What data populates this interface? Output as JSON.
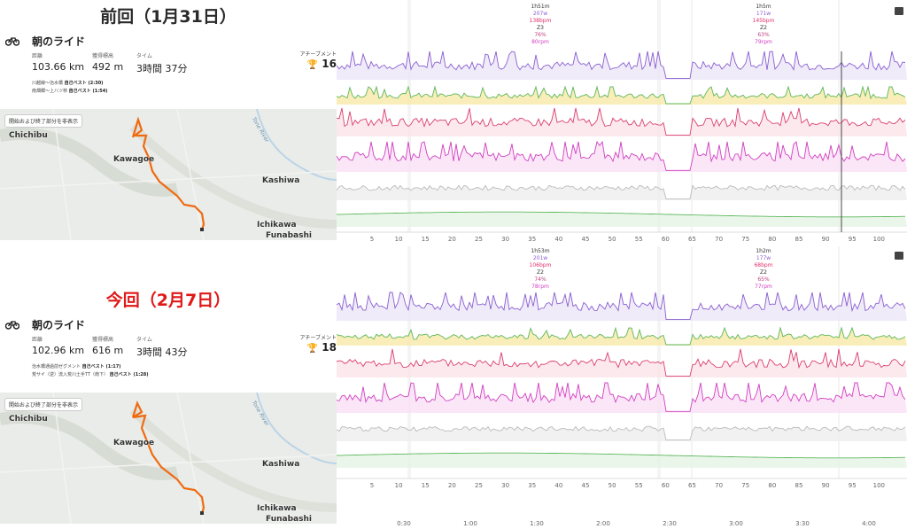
{
  "top": {
    "heading": "前回（1月31日）",
    "activity_title": "朝のライド",
    "stats": [
      {
        "label": "距離",
        "value": "103.66 km"
      },
      {
        "label": "獲得標高",
        "value": "492 m"
      },
      {
        "label": "タイム",
        "value": "3時間 37分"
      }
    ],
    "achievements_label": "アチーブメント",
    "achievements_value": "16",
    "segments": [
      {
        "name": "川越線〜治水橋",
        "pr": "自己ベスト (2:30)"
      },
      {
        "name": "南畑郷〜上八ツ林",
        "pr": "自己ベスト (1:54)"
      }
    ],
    "map_toggle": "開始および終了部分を非表示",
    "cities": [
      "Chichibu",
      "Kawagoe",
      "Kashiwa",
      "Ichikawa",
      "Funabashi"
    ],
    "river": "Tone River",
    "laps": [
      {
        "time": "1h51m",
        "power": "207w",
        "hr": "138bpm",
        "zone": "Z3",
        "pct": "76%",
        "cad": "80rpm"
      },
      {
        "time": "1h5m",
        "power": "171w",
        "hr": "145bpm",
        "zone": "Z2",
        "pct": "63%",
        "cad": "79rpm"
      }
    ],
    "km_ticks": [
      "5",
      "10",
      "15",
      "20",
      "25",
      "30",
      "35",
      "40",
      "45",
      "50",
      "55",
      "60",
      "65",
      "70",
      "75",
      "80",
      "85",
      "90",
      "95",
      "100"
    ]
  },
  "bottom": {
    "heading": "今回（2月7日）",
    "activity_title": "朝のライド",
    "stats": [
      {
        "label": "距離",
        "value": "102.96 km"
      },
      {
        "label": "獲得標高",
        "value": "616 m"
      },
      {
        "label": "タイム",
        "value": "3時間 43分"
      }
    ],
    "achievements_label": "アチーブメント",
    "achievements_value": "18",
    "segments": [
      {
        "name": "治水橋通過前ゼグメント",
        "pr": "自己ベスト (1:17)"
      },
      {
        "name": "荒サイ（逆）流入荒川土手TT（南下）",
        "pr": "自己ベスト (1:28)"
      }
    ],
    "map_toggle": "開始および終了部分を非表示",
    "cities": [
      "Chichibu",
      "Kawagoe",
      "Kashiwa",
      "Ichikawa",
      "Funabashi"
    ],
    "river": "Tone River",
    "laps": [
      {
        "time": "1h53m",
        "power": "201w",
        "hr": "106bpm",
        "zone": "Z2",
        "pct": "74%",
        "cad": "78rpm"
      },
      {
        "time": "1h2m",
        "power": "177w",
        "hr": "68bpm",
        "zone": "Z2",
        "pct": "65%",
        "cad": "77rpm"
      }
    ],
    "km_ticks": [
      "5",
      "10",
      "15",
      "20",
      "25",
      "30",
      "35",
      "40",
      "45",
      "50",
      "55",
      "60",
      "65",
      "70",
      "75",
      "80",
      "85",
      "90",
      "95",
      "100"
    ],
    "time_ticks": [
      "0:30",
      "1:00",
      "1:30",
      "2:00",
      "2:30",
      "3:00",
      "3:30",
      "4:00"
    ]
  },
  "colors": {
    "power": "#8a5fd0",
    "zones": "#e8c23a",
    "hr": "#d94070",
    "cadence": "#d040c0",
    "speed": "#bbbbbb",
    "elev": "#5cb85c",
    "route": "#f06a10"
  }
}
